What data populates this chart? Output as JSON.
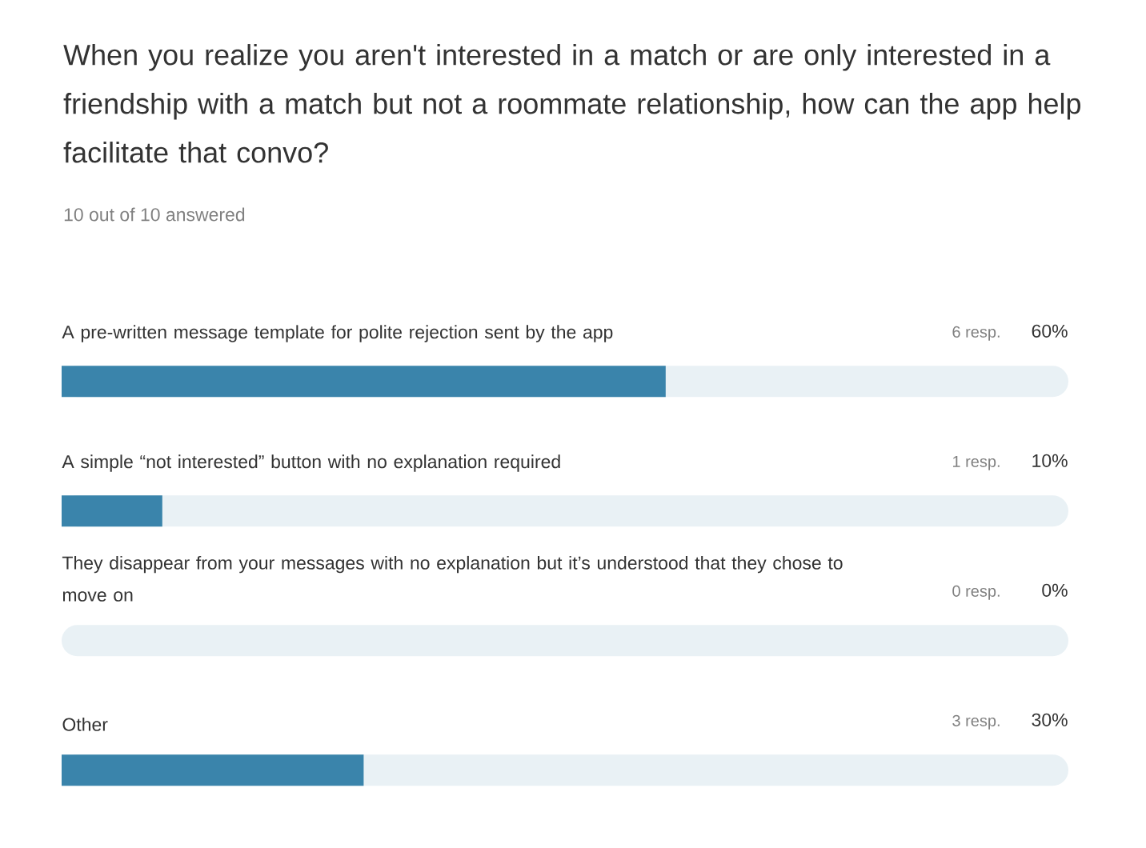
{
  "chart_data": {
    "type": "bar",
    "orientation": "horizontal",
    "title": "When you realize you aren't interested in a match or are only interested in a friendship with a match but not a roommate relationship, how can the app help facilitate that convo?",
    "subtitle": "10 out of 10 answered",
    "categories": [
      "A pre-written message template for polite rejection sent by the app",
      "A simple “not interested” button with no explanation required",
      "They disappear from your messages with no explanation but it’s understood that they chose to move on",
      "Other"
    ],
    "values": [
      60,
      10,
      0,
      30
    ],
    "value_labels": [
      "60%",
      "10%",
      "0%",
      "30%"
    ],
    "annotations": [
      "6 resp.",
      "1 resp.",
      "0 resp.",
      "3 resp."
    ],
    "color": "#3a84ab",
    "tick_labels": "y"
  }
}
